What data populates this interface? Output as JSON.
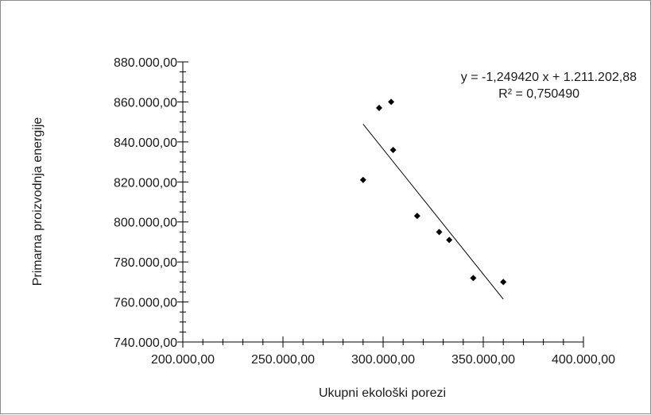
{
  "chart_data": {
    "type": "scatter",
    "title": "",
    "xlabel": "Ukupni ekološki porezi",
    "ylabel": "Primarna proizvodnja energije",
    "xlim": [
      200000,
      400000
    ],
    "ylim": [
      740000,
      880000
    ],
    "x_ticks": [
      200000,
      250000,
      300000,
      350000,
      400000
    ],
    "x_tick_labels": [
      "200.000,00",
      "250.000,00",
      "300.000,00",
      "350.000,00",
      "400.000,00"
    ],
    "y_ticks": [
      740000,
      760000,
      780000,
      800000,
      820000,
      840000,
      860000,
      880000
    ],
    "y_tick_labels": [
      "740.000,00",
      "760.000,00",
      "780.000,00",
      "800.000,00",
      "820.000,00",
      "840.000,00",
      "860.000,00",
      "880.000,00"
    ],
    "grid": false,
    "legend": "none",
    "marker_color": "#000000",
    "trendline_color": "#000000",
    "series": [
      {
        "points": [
          {
            "x": 290000,
            "y": 821000
          },
          {
            "x": 298000,
            "y": 857000
          },
          {
            "x": 304000,
            "y": 860000
          },
          {
            "x": 305000,
            "y": 836000
          },
          {
            "x": 317000,
            "y": 803000
          },
          {
            "x": 328000,
            "y": 795000
          },
          {
            "x": 333000,
            "y": 791000
          },
          {
            "x": 345000,
            "y": 772000
          },
          {
            "x": 360000,
            "y": 770000
          }
        ]
      }
    ],
    "trendline": {
      "slope": -1.24942,
      "intercept": 1211202.88,
      "x_range": [
        290000,
        360000
      ],
      "equation_text": "y = -1,249420  x + 1.211.202,88",
      "r2_text": "R² = 0,750490"
    }
  }
}
